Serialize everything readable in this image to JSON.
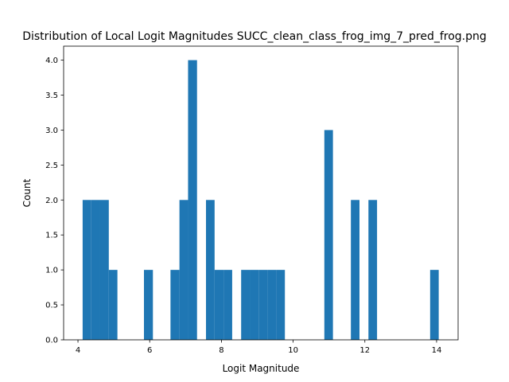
{
  "chart_data": {
    "type": "bar",
    "title": "Distribution of Local Logit Magnitudes SUCC_clean_class_frog_img_7_pred_frog.png",
    "xlabel": "Logit Magnitude",
    "ylabel": "Count",
    "xlim": [
      3.6,
      14.6
    ],
    "ylim": [
      0,
      4.2
    ],
    "xticks": [
      4,
      6,
      8,
      10,
      12,
      14
    ],
    "xtick_labels": [
      "4",
      "6",
      "8",
      "10",
      "12",
      "14"
    ],
    "yticks": [
      0,
      0.5,
      1,
      1.5,
      2,
      2.5,
      3,
      3.5,
      4
    ],
    "ytick_labels": [
      "0.0",
      "0.5",
      "1.0",
      "1.5",
      "2.0",
      "2.5",
      "3.0",
      "3.5",
      "4.0"
    ],
    "bar_color": "#1f77b4",
    "bins": [
      {
        "x0": 4.13,
        "x1": 4.37,
        "count": 2
      },
      {
        "x0": 4.37,
        "x1": 4.62,
        "count": 2
      },
      {
        "x0": 4.62,
        "x1": 4.86,
        "count": 2
      },
      {
        "x0": 4.86,
        "x1": 5.1,
        "count": 1
      },
      {
        "x0": 5.84,
        "x1": 6.09,
        "count": 1
      },
      {
        "x0": 6.58,
        "x1": 6.83,
        "count": 1
      },
      {
        "x0": 6.83,
        "x1": 7.07,
        "count": 2
      },
      {
        "x0": 7.07,
        "x1": 7.32,
        "count": 4
      },
      {
        "x0": 7.57,
        "x1": 7.81,
        "count": 2
      },
      {
        "x0": 7.81,
        "x1": 8.06,
        "count": 1
      },
      {
        "x0": 8.06,
        "x1": 8.3,
        "count": 1
      },
      {
        "x0": 8.55,
        "x1": 8.79,
        "count": 1
      },
      {
        "x0": 8.79,
        "x1": 9.04,
        "count": 1
      },
      {
        "x0": 9.04,
        "x1": 9.28,
        "count": 1
      },
      {
        "x0": 9.28,
        "x1": 9.53,
        "count": 1
      },
      {
        "x0": 9.53,
        "x1": 9.77,
        "count": 1
      },
      {
        "x0": 10.87,
        "x1": 11.11,
        "count": 3
      },
      {
        "x0": 11.61,
        "x1": 11.85,
        "count": 2
      },
      {
        "x0": 12.1,
        "x1": 12.34,
        "count": 2
      },
      {
        "x0": 13.82,
        "x1": 14.06,
        "count": 1
      }
    ]
  }
}
